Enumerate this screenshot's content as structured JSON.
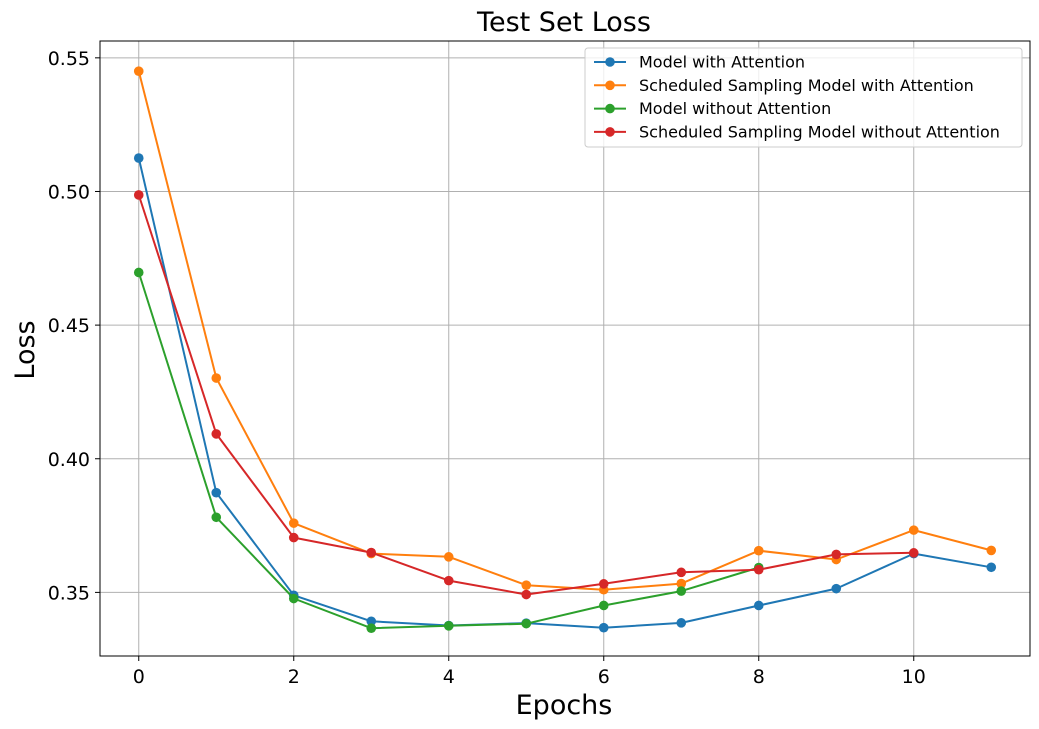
{
  "chart_data": {
    "type": "line",
    "title": "Test Set Loss",
    "xlabel": "Epochs",
    "ylabel": "Loss",
    "xlim": [
      -0.5,
      11.5
    ],
    "ylim": [
      0.3262,
      0.5563
    ],
    "xticks": [
      0,
      2,
      4,
      6,
      8,
      10
    ],
    "yticks": [
      0.35,
      0.4,
      0.45,
      0.5,
      0.55
    ],
    "xtick_labels": [
      "0",
      "2",
      "4",
      "6",
      "8",
      "10"
    ],
    "ytick_labels": [
      "0.35",
      "0.40",
      "0.45",
      "0.50",
      "0.55"
    ],
    "grid": true,
    "legend_position": "top-right",
    "series": [
      {
        "name": "Model with Attention",
        "color": "#1f77b4",
        "x": [
          0,
          1,
          2,
          3,
          4,
          5,
          6,
          7,
          8,
          9,
          10,
          11
        ],
        "y": [
          0.5125,
          0.3873,
          0.3489,
          0.3392,
          0.3376,
          0.3385,
          0.3368,
          0.3386,
          0.3451,
          0.3514,
          0.3645,
          0.3594
        ]
      },
      {
        "name": "Scheduled Sampling Model with Attention",
        "color": "#ff7f0e",
        "x": [
          0,
          1,
          2,
          3,
          4,
          5,
          6,
          7,
          8,
          9,
          10,
          11
        ],
        "y": [
          0.545,
          0.4302,
          0.3759,
          0.3645,
          0.3633,
          0.3527,
          0.351,
          0.3533,
          0.3656,
          0.3623,
          0.3733,
          0.3657
        ]
      },
      {
        "name": "Model without Attention",
        "color": "#2ca02c",
        "x": [
          0,
          1,
          2,
          3,
          4,
          5,
          6,
          7,
          8
        ],
        "y": [
          0.4697,
          0.3781,
          0.3477,
          0.3366,
          0.3375,
          0.3383,
          0.3451,
          0.3505,
          0.3593
        ]
      },
      {
        "name": "Scheduled Sampling Model without Attention",
        "color": "#d62728",
        "x": [
          0,
          1,
          2,
          3,
          4,
          5,
          6,
          7,
          8,
          9,
          10
        ],
        "y": [
          0.4987,
          0.4093,
          0.3705,
          0.3649,
          0.3544,
          0.3492,
          0.3532,
          0.3575,
          0.3585,
          0.3642,
          0.3648
        ]
      }
    ]
  }
}
